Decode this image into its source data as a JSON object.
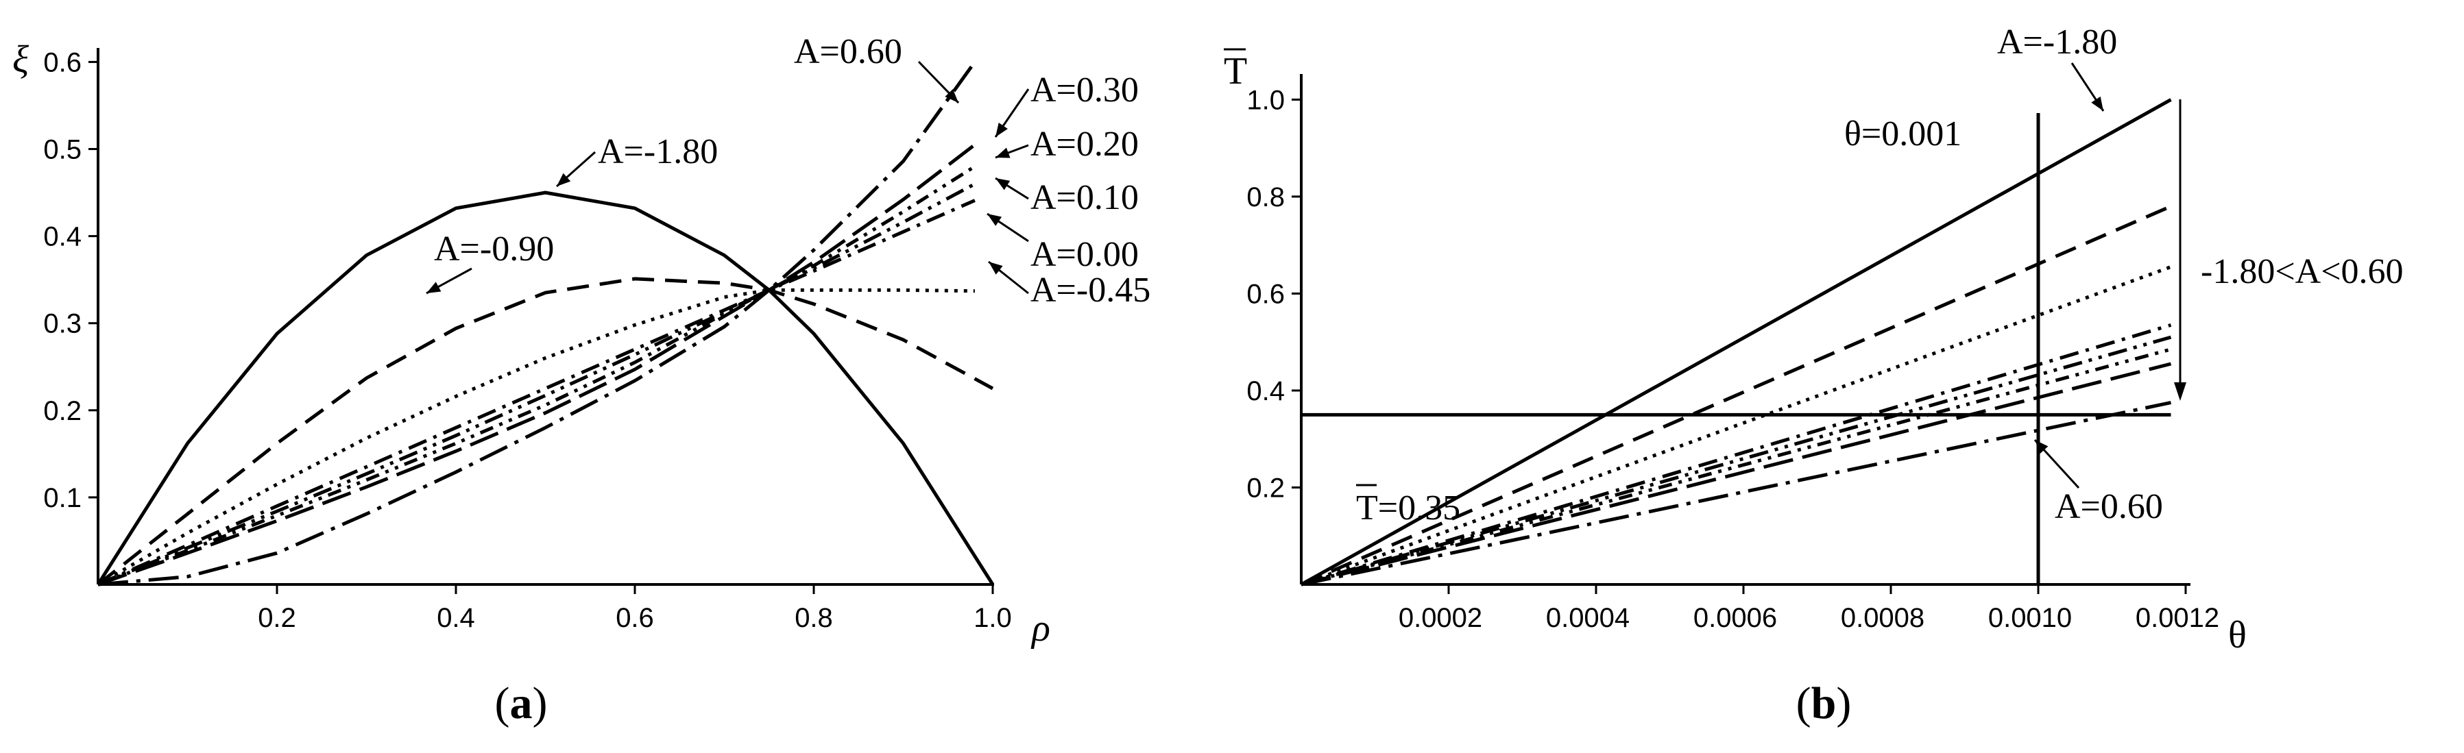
{
  "chart_data": [
    {
      "type": "line",
      "panel_label": "(a)",
      "xlabel": "ρ",
      "ylabel": "ξ",
      "xlim": [
        0,
        1.0
      ],
      "ylim": [
        0,
        0.62
      ],
      "xticks": [
        "0.2",
        "0.4",
        "0.6",
        "0.8",
        "1.0"
      ],
      "yticks": [
        "0.1",
        "0.2",
        "0.3",
        "0.4",
        "0.5",
        "0.6"
      ],
      "series": [
        {
          "name": "A=-1.80",
          "dash": "solid",
          "x": [
            0,
            0.1,
            0.2,
            0.3,
            0.4,
            0.5,
            0.6,
            0.7,
            0.75,
            0.8,
            0.9,
            1.0
          ],
          "y": [
            0,
            0.162,
            0.288,
            0.378,
            0.432,
            0.45,
            0.432,
            0.378,
            0.338,
            0.288,
            0.162,
            0
          ]
        },
        {
          "name": "A=-0.90",
          "dash": "dashed",
          "x": [
            0,
            0.1,
            0.2,
            0.3,
            0.4,
            0.5,
            0.6,
            0.7,
            0.75,
            0.8,
            0.9,
            1.0
          ],
          "y": [
            0,
            0.081,
            0.162,
            0.237,
            0.294,
            0.335,
            0.351,
            0.346,
            0.338,
            0.322,
            0.281,
            0.225
          ]
        },
        {
          "name": "A=-0.45",
          "dash": "dotted",
          "x": [
            0,
            0.1,
            0.2,
            0.3,
            0.4,
            0.5,
            0.6,
            0.7,
            0.75,
            0.8,
            0.9,
            0.98
          ],
          "y": [
            0,
            0.059,
            0.115,
            0.168,
            0.216,
            0.26,
            0.298,
            0.33,
            0.338,
            0.338,
            0.338,
            0.337
          ]
        },
        {
          "name": "A=0.00",
          "dash": "dashdot",
          "x": [
            0,
            0.1,
            0.2,
            0.3,
            0.4,
            0.5,
            0.6,
            0.7,
            0.75,
            0.8,
            0.9,
            0.98
          ],
          "y": [
            0,
            0.045,
            0.09,
            0.135,
            0.18,
            0.225,
            0.27,
            0.315,
            0.338,
            0.36,
            0.405,
            0.441
          ]
        },
        {
          "name": "A=0.10",
          "dash": "dashdotdot",
          "x": [
            0,
            0.1,
            0.2,
            0.3,
            0.4,
            0.5,
            0.6,
            0.7,
            0.75,
            0.8,
            0.9,
            0.98
          ],
          "y": [
            0,
            0.042,
            0.084,
            0.127,
            0.171,
            0.217,
            0.264,
            0.313,
            0.338,
            0.363,
            0.416,
            0.46
          ]
        },
        {
          "name": "A=0.20",
          "dash": "dashdotdot2",
          "x": [
            0,
            0.1,
            0.2,
            0.3,
            0.4,
            0.5,
            0.6,
            0.7,
            0.75,
            0.8,
            0.9,
            0.98
          ],
          "y": [
            0,
            0.039,
            0.079,
            0.12,
            0.162,
            0.206,
            0.255,
            0.311,
            0.338,
            0.366,
            0.428,
            0.48
          ]
        },
        {
          "name": "A=0.30",
          "dash": "longdash",
          "x": [
            0,
            0.1,
            0.2,
            0.3,
            0.4,
            0.5,
            0.6,
            0.7,
            0.75,
            0.8,
            0.9,
            0.98
          ],
          "y": [
            0,
            0.036,
            0.073,
            0.112,
            0.153,
            0.197,
            0.247,
            0.308,
            0.338,
            0.37,
            0.442,
            0.505
          ]
        },
        {
          "name": "A=0.60",
          "dash": "longdashdot",
          "x": [
            0,
            0.1,
            0.2,
            0.3,
            0.4,
            0.5,
            0.6,
            0.7,
            0.75,
            0.8,
            0.9,
            0.98
          ],
          "y": [
            0,
            0.009,
            0.036,
            0.081,
            0.129,
            0.18,
            0.234,
            0.296,
            0.338,
            0.384,
            0.486,
            0.6
          ]
        }
      ],
      "annotations": [
        {
          "text": "A=0.60",
          "x": 0.78,
          "y": 0.585
        },
        {
          "text": "A=0.30",
          "x": 1.04,
          "y": 0.59
        },
        {
          "text": "A=0.20",
          "x": 1.04,
          "y": 0.51
        },
        {
          "text": "A=0.10",
          "x": 1.04,
          "y": 0.445
        },
        {
          "text": "A=0.00",
          "x": 1.04,
          "y": 0.38
        },
        {
          "text": "A=-0.45",
          "x": 1.04,
          "y": 0.33
        },
        {
          "text": "A=-1.80",
          "x": 0.56,
          "y": 0.505
        },
        {
          "text": "A=-0.90",
          "x": 0.36,
          "y": 0.385
        }
      ]
    },
    {
      "type": "line",
      "panel_label": "(b)",
      "xlabel": "θ",
      "ylabel": "T",
      "xlim": [
        0,
        0.0012
      ],
      "ylim": [
        0,
        1.05
      ],
      "xticks": [
        "0.0002",
        "0.0004",
        "0.0006",
        "0.0008",
        "0.0010",
        "0.0012"
      ],
      "yticks": [
        "0.2",
        "0.4",
        "0.6",
        "0.8",
        "1.0"
      ],
      "series": [
        {
          "name": "A=-1.80",
          "dash": "solid",
          "x": [
            0,
            0.00118
          ],
          "y": [
            0,
            1.0
          ]
        },
        {
          "name": "",
          "dash": "dashed",
          "x": [
            0,
            0.00118
          ],
          "y": [
            0,
            0.78
          ]
        },
        {
          "name": "",
          "dash": "dotted",
          "x": [
            0,
            0.00118
          ],
          "y": [
            0,
            0.655
          ]
        },
        {
          "name": "",
          "dash": "dashdot",
          "x": [
            0,
            0.00118
          ],
          "y": [
            0,
            0.535
          ]
        },
        {
          "name": "",
          "dash": "dashdotdot",
          "x": [
            0,
            0.00118
          ],
          "y": [
            0,
            0.51
          ]
        },
        {
          "name": "",
          "dash": "dashdotdot2",
          "x": [
            0,
            0.00118
          ],
          "y": [
            0,
            0.485
          ]
        },
        {
          "name": "",
          "dash": "longdash",
          "x": [
            0,
            0.00118
          ],
          "y": [
            0,
            0.455
          ]
        },
        {
          "name": "A=0.60",
          "dash": "longdashdot",
          "x": [
            0,
            0.00118
          ],
          "y": [
            0,
            0.375
          ]
        }
      ],
      "reference_lines": [
        {
          "orientation": "horizontal",
          "value": 0.35,
          "label": "T=0.35"
        },
        {
          "orientation": "vertical",
          "value": 0.001,
          "label": "θ=0.001"
        }
      ],
      "annotations": [
        {
          "text": "A=-1.80",
          "x": 0.00103,
          "y": 1.08
        },
        {
          "text": "A=0.60",
          "x": 0.00109,
          "y": 0.13
        },
        {
          "text": "-1.80<A<0.60",
          "x": 0.00137,
          "y": 0.62
        }
      ]
    }
  ]
}
